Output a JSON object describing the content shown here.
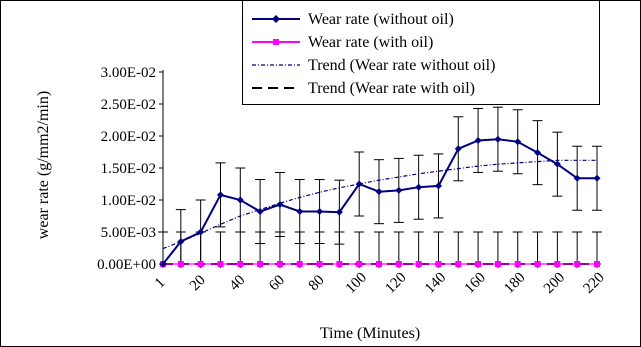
{
  "chart_data": {
    "type": "line",
    "xlabel": "Time (Minutes)",
    "ylabel": "wear rate (g/mm2/min)",
    "ylim": [
      0,
      0.03
    ],
    "y_ticks": [
      "0.00E+00",
      "5.00E-03",
      "1.00E-02",
      "1.50E-02",
      "2.00E-02",
      "2.50E-02",
      "3.00E-02"
    ],
    "y_tick_values": [
      0,
      0.005,
      0.01,
      0.015,
      0.02,
      0.025,
      0.03
    ],
    "x_ticks": [
      "1",
      "20",
      "40",
      "60",
      "80",
      "100",
      "120",
      "140",
      "160",
      "180",
      "200",
      "220"
    ],
    "x": [
      1,
      10,
      20,
      30,
      40,
      50,
      60,
      70,
      80,
      90,
      100,
      110,
      120,
      130,
      140,
      150,
      160,
      170,
      180,
      190,
      200,
      210,
      220
    ],
    "legend_position": "top-right",
    "series": [
      {
        "name": "Wear rate (without oil)",
        "color": "#000080",
        "marker": "diamond",
        "style": "solid",
        "values": [
          0.0,
          0.0035,
          0.005,
          0.0108,
          0.01,
          0.0082,
          0.0093,
          0.0082,
          0.0082,
          0.0081,
          0.0125,
          0.0113,
          0.0115,
          0.012,
          0.0122,
          0.018,
          0.0193,
          0.0195,
          0.0191,
          0.0174,
          0.0156,
          0.0134,
          0.0134
        ],
        "error": 0.005
      },
      {
        "name": "Wear rate (with oil)",
        "color": "#ff00ff",
        "marker": "square",
        "style": "solid",
        "values": [
          0,
          0,
          0,
          0,
          0,
          0,
          0,
          0,
          0,
          0,
          0,
          0,
          0,
          0,
          0,
          0,
          0,
          0,
          0,
          0,
          0,
          0,
          0
        ],
        "error": 0.005
      },
      {
        "name": "Trend (Wear rate without oil)",
        "color": "#000080",
        "marker": "none",
        "style": "dashdot",
        "values": [
          0.0024,
          0.0035,
          0.0048,
          0.0062,
          0.0075,
          0.0085,
          0.0095,
          0.0104,
          0.0112,
          0.0119,
          0.0125,
          0.0131,
          0.0136,
          0.0141,
          0.0145,
          0.0149,
          0.0153,
          0.0156,
          0.0158,
          0.016,
          0.0162,
          0.0162,
          0.0162
        ]
      },
      {
        "name": "Trend (Wear rate with oil)",
        "color": "#000000",
        "marker": "none",
        "style": "dash",
        "values": [
          0,
          0,
          0,
          0,
          0,
          0,
          0,
          0,
          0,
          0,
          0,
          0,
          0,
          0,
          0,
          0,
          0,
          0,
          0,
          0,
          0,
          0,
          0
        ]
      }
    ]
  }
}
